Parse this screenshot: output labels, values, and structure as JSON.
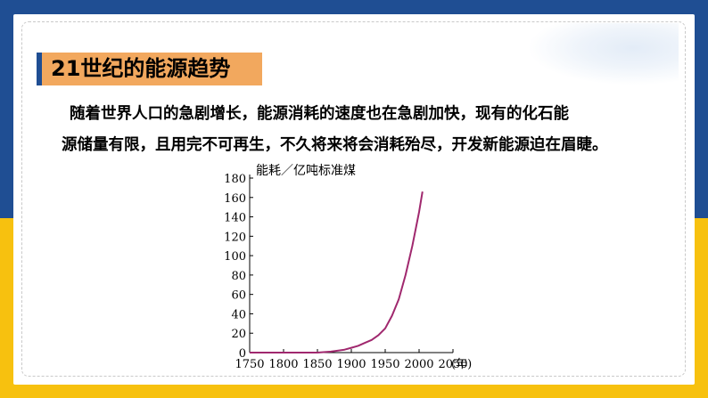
{
  "slide": {
    "title": "21世纪的能源趋势",
    "paragraph_line1": "随着世界人口的急剧增长，能源消耗的速度也在急剧加快，现有的化石能",
    "paragraph_line2": "源储量有限，且用完不可再生，不久将来将会消耗殆尽，开发新能源迫在眉睫。"
  },
  "colors": {
    "top_band": "#1f4e93",
    "bottom_band": "#f7c10f",
    "title_box": "#f2a85e",
    "curve": "#a0286e"
  },
  "chart_data": {
    "type": "line",
    "ylabel": "能耗／亿吨标准煤",
    "xlabel": "(年)",
    "xlim": [
      1750,
      2050
    ],
    "ylim": [
      0,
      180
    ],
    "xticks": [
      "1750",
      "1800",
      "1850",
      "1900",
      "1950",
      "2000",
      "2050"
    ],
    "yticks": [
      "0",
      "20",
      "40",
      "60",
      "80",
      "100",
      "120",
      "140",
      "160",
      "180"
    ],
    "series": [
      {
        "x": [
          1750,
          1800,
          1850,
          1870,
          1890,
          1900,
          1910,
          1920,
          1930,
          1940,
          1950,
          1960,
          1970,
          1980,
          1990,
          2000,
          2005
        ],
        "y": [
          0,
          0,
          0,
          1,
          3,
          5,
          7,
          10,
          13,
          18,
          25,
          38,
          55,
          80,
          110,
          145,
          166
        ]
      }
    ]
  }
}
